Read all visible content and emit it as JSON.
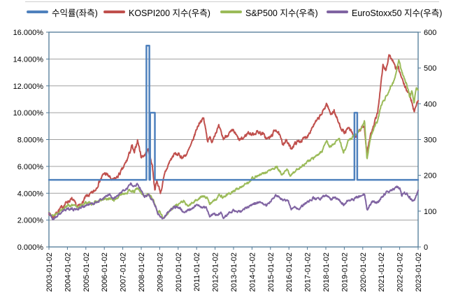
{
  "legend": {
    "items": [
      {
        "label": "수익률(좌측)",
        "color": "#4F81BD"
      },
      {
        "label": "KOSPI200 지수(우측)",
        "color": "#C0504D"
      },
      {
        "label": "S&P500 지수(우측)",
        "color": "#9BBB59"
      },
      {
        "label": "EuroStoxx50 지수(우측)",
        "color": "#8064A2"
      }
    ]
  },
  "chart_data": {
    "type": "line",
    "title": "",
    "grid": true,
    "legend_position": "top",
    "left_axis": {
      "unit": "%",
      "min": 0,
      "max": 16,
      "tick_labels": [
        "16.000%",
        "14.000%",
        "12.000%",
        "10.000%",
        "8.000%",
        "6.000%",
        "4.000%",
        "2.000%",
        "0.000%"
      ]
    },
    "right_axis": {
      "min": 0,
      "max": 600,
      "tick_labels": [
        "600",
        "500",
        "400",
        "300",
        "200",
        "100",
        "0"
      ]
    },
    "x_axis": {
      "min_year": 2003,
      "max_year": 2023,
      "tick_labels": [
        "2003-01-02",
        "2004-01-02",
        "2005-01-02",
        "2006-01-02",
        "2007-01-02",
        "2008-01-02",
        "2009-01-02",
        "2010-01-02",
        "2011-01-02",
        "2012-01-02",
        "2013-01-02",
        "2014-01-02",
        "2015-01-02",
        "2016-01-02",
        "2017-01-02",
        "2018-01-02",
        "2019-01-02",
        "2020-01-02",
        "2021-01-02",
        "2022-01-02",
        "2023-01-02"
      ]
    },
    "series": [
      {
        "name": "수익률(좌측)",
        "axis": "left",
        "color": "#4F81BD",
        "style": "step",
        "jitter": 0,
        "points": [
          [
            2003.0,
            5
          ],
          [
            2008.28,
            5
          ],
          [
            2008.28,
            15
          ],
          [
            2008.44,
            15
          ],
          [
            2008.44,
            5
          ],
          [
            2008.48,
            5
          ],
          [
            2008.48,
            10
          ],
          [
            2008.74,
            10
          ],
          [
            2008.74,
            5
          ],
          [
            2019.55,
            5
          ],
          [
            2019.55,
            10
          ],
          [
            2019.7,
            10
          ],
          [
            2019.7,
            5
          ],
          [
            2023.0,
            5
          ]
        ]
      },
      {
        "name": "KOSPI200 지수(우측)",
        "axis": "right",
        "color": "#C0504D",
        "style": "noisy",
        "jitter": 6.5,
        "points": [
          [
            2003.0,
            96
          ],
          [
            2003.2,
            82
          ],
          [
            2003.5,
            101
          ],
          [
            2003.75,
            113
          ],
          [
            2004.0,
            127
          ],
          [
            2004.25,
            133
          ],
          [
            2004.55,
            111
          ],
          [
            2004.8,
            122
          ],
          [
            2005.0,
            140
          ],
          [
            2005.3,
            148
          ],
          [
            2005.5,
            158
          ],
          [
            2005.75,
            185
          ],
          [
            2006.0,
            206
          ],
          [
            2006.2,
            200
          ],
          [
            2006.45,
            185
          ],
          [
            2006.7,
            195
          ],
          [
            2007.0,
            218
          ],
          [
            2007.25,
            245
          ],
          [
            2007.5,
            283
          ],
          [
            2007.62,
            260
          ],
          [
            2007.8,
            299
          ],
          [
            2008.0,
            252
          ],
          [
            2008.2,
            258
          ],
          [
            2008.38,
            272
          ],
          [
            2008.6,
            228
          ],
          [
            2008.73,
            162
          ],
          [
            2008.85,
            183
          ],
          [
            2009.05,
            152
          ],
          [
            2009.3,
            208
          ],
          [
            2009.55,
            240
          ],
          [
            2009.8,
            260
          ],
          [
            2010.0,
            258
          ],
          [
            2010.25,
            250
          ],
          [
            2010.5,
            262
          ],
          [
            2010.75,
            290
          ],
          [
            2011.0,
            330
          ],
          [
            2011.2,
            352
          ],
          [
            2011.38,
            358
          ],
          [
            2011.6,
            296
          ],
          [
            2011.7,
            312
          ],
          [
            2011.8,
            290
          ],
          [
            2012.0,
            318
          ],
          [
            2012.2,
            335
          ],
          [
            2012.45,
            302
          ],
          [
            2012.7,
            315
          ],
          [
            2013.0,
            324
          ],
          [
            2013.3,
            298
          ],
          [
            2013.5,
            302
          ],
          [
            2013.8,
            320
          ],
          [
            2014.0,
            314
          ],
          [
            2014.3,
            322
          ],
          [
            2014.6,
            315
          ],
          [
            2014.8,
            302
          ],
          [
            2015.0,
            306
          ],
          [
            2015.3,
            330
          ],
          [
            2015.5,
            310
          ],
          [
            2015.65,
            288
          ],
          [
            2015.85,
            298
          ],
          [
            2016.1,
            275
          ],
          [
            2016.4,
            292
          ],
          [
            2016.7,
            298
          ],
          [
            2017.0,
            310
          ],
          [
            2017.3,
            338
          ],
          [
            2017.6,
            358
          ],
          [
            2017.85,
            378
          ],
          [
            2018.04,
            401
          ],
          [
            2018.25,
            372
          ],
          [
            2018.45,
            380
          ],
          [
            2018.7,
            345
          ],
          [
            2019.0,
            318
          ],
          [
            2019.25,
            332
          ],
          [
            2019.55,
            305
          ],
          [
            2019.8,
            322
          ],
          [
            2020.08,
            340
          ],
          [
            2020.22,
            262
          ],
          [
            2020.4,
            310
          ],
          [
            2020.6,
            338
          ],
          [
            2020.8,
            375
          ],
          [
            2020.95,
            440
          ],
          [
            2021.1,
            508
          ],
          [
            2021.25,
            492
          ],
          [
            2021.42,
            537
          ],
          [
            2021.6,
            522
          ],
          [
            2021.75,
            502
          ],
          [
            2021.95,
            498
          ],
          [
            2022.1,
            472
          ],
          [
            2022.3,
            445
          ],
          [
            2022.5,
            430
          ],
          [
            2022.65,
            408
          ],
          [
            2022.78,
            378
          ],
          [
            2022.9,
            402
          ],
          [
            2023.0,
            404
          ]
        ]
      },
      {
        "name": "S&P500 지수(우측)",
        "axis": "right",
        "color": "#9BBB59",
        "style": "noisy",
        "jitter": 4.5,
        "points": [
          [
            2003.0,
            97
          ],
          [
            2003.2,
            87
          ],
          [
            2003.5,
            96
          ],
          [
            2003.75,
            108
          ],
          [
            2004.0,
            117
          ],
          [
            2004.3,
            115
          ],
          [
            2004.6,
            111
          ],
          [
            2005.0,
            124
          ],
          [
            2005.3,
            121
          ],
          [
            2005.6,
            126
          ],
          [
            2006.0,
            133
          ],
          [
            2006.3,
            135
          ],
          [
            2006.55,
            131
          ],
          [
            2007.0,
            150
          ],
          [
            2007.25,
            152
          ],
          [
            2007.45,
            159
          ],
          [
            2007.6,
            152
          ],
          [
            2007.78,
            165
          ],
          [
            2008.0,
            151
          ],
          [
            2008.2,
            142
          ],
          [
            2008.4,
            147
          ],
          [
            2008.65,
            134
          ],
          [
            2008.78,
            112
          ],
          [
            2008.9,
            95
          ],
          [
            2009.0,
            98
          ],
          [
            2009.18,
            80
          ],
          [
            2009.4,
            92
          ],
          [
            2009.7,
            110
          ],
          [
            2010.0,
            120
          ],
          [
            2010.3,
            128
          ],
          [
            2010.5,
            113
          ],
          [
            2010.75,
            122
          ],
          [
            2011.0,
            132
          ],
          [
            2011.3,
            141
          ],
          [
            2011.55,
            138
          ],
          [
            2011.73,
            118
          ],
          [
            2011.85,
            129
          ],
          [
            2012.0,
            132
          ],
          [
            2012.25,
            146
          ],
          [
            2012.42,
            139
          ],
          [
            2012.7,
            147
          ],
          [
            2013.0,
            155
          ],
          [
            2013.4,
            168
          ],
          [
            2013.75,
            178
          ],
          [
            2014.0,
            192
          ],
          [
            2014.4,
            200
          ],
          [
            2014.75,
            208
          ],
          [
            2015.0,
            215
          ],
          [
            2015.35,
            222
          ],
          [
            2015.65,
            200
          ],
          [
            2015.9,
            216
          ],
          [
            2016.1,
            198
          ],
          [
            2016.4,
            216
          ],
          [
            2016.7,
            225
          ],
          [
            2017.0,
            238
          ],
          [
            2017.4,
            250
          ],
          [
            2017.8,
            268
          ],
          [
            2018.04,
            300
          ],
          [
            2018.15,
            280
          ],
          [
            2018.4,
            285
          ],
          [
            2018.72,
            305
          ],
          [
            2018.95,
            262
          ],
          [
            2019.2,
            294
          ],
          [
            2019.4,
            306
          ],
          [
            2019.6,
            314
          ],
          [
            2019.85,
            325
          ],
          [
            2020.1,
            352
          ],
          [
            2020.23,
            242
          ],
          [
            2020.4,
            300
          ],
          [
            2020.6,
            330
          ],
          [
            2020.8,
            352
          ],
          [
            2021.0,
            396
          ],
          [
            2021.25,
            418
          ],
          [
            2021.5,
            448
          ],
          [
            2021.65,
            460
          ],
          [
            2021.8,
            482
          ],
          [
            2021.95,
            525
          ],
          [
            2022.1,
            490
          ],
          [
            2022.25,
            470
          ],
          [
            2022.4,
            452
          ],
          [
            2022.55,
            418
          ],
          [
            2022.65,
            440
          ],
          [
            2022.78,
            402
          ],
          [
            2022.9,
            446
          ],
          [
            2023.0,
            436
          ]
        ]
      },
      {
        "name": "EuroStoxx50 지수(우측)",
        "axis": "right",
        "color": "#8064A2",
        "style": "noisy",
        "jitter": 4.5,
        "points": [
          [
            2003.0,
            96
          ],
          [
            2003.2,
            77
          ],
          [
            2003.5,
            89
          ],
          [
            2003.75,
            99
          ],
          [
            2004.0,
            108
          ],
          [
            2004.3,
            105
          ],
          [
            2004.6,
            107
          ],
          [
            2005.0,
            116
          ],
          [
            2005.4,
            121
          ],
          [
            2005.75,
            130
          ],
          [
            2006.0,
            138
          ],
          [
            2006.3,
            146
          ],
          [
            2006.45,
            132
          ],
          [
            2006.75,
            144
          ],
          [
            2007.0,
            156
          ],
          [
            2007.25,
            164
          ],
          [
            2007.42,
            178
          ],
          [
            2007.6,
            172
          ],
          [
            2007.78,
            176
          ],
          [
            2008.0,
            158
          ],
          [
            2008.18,
            138
          ],
          [
            2008.4,
            146
          ],
          [
            2008.6,
            133
          ],
          [
            2008.78,
            112
          ],
          [
            2008.9,
            95
          ],
          [
            2009.05,
            85
          ],
          [
            2009.18,
            78
          ],
          [
            2009.4,
            95
          ],
          [
            2009.7,
            110
          ],
          [
            2010.0,
            112
          ],
          [
            2010.3,
            96
          ],
          [
            2010.6,
            104
          ],
          [
            2010.8,
            108
          ],
          [
            2011.05,
            118
          ],
          [
            2011.3,
            112
          ],
          [
            2011.55,
            108
          ],
          [
            2011.73,
            82
          ],
          [
            2011.88,
            92
          ],
          [
            2012.1,
            90
          ],
          [
            2012.3,
            95
          ],
          [
            2012.45,
            82
          ],
          [
            2012.7,
            93
          ],
          [
            2013.0,
            102
          ],
          [
            2013.35,
            98
          ],
          [
            2013.7,
            110
          ],
          [
            2014.0,
            118
          ],
          [
            2014.4,
            124
          ],
          [
            2014.75,
            116
          ],
          [
            2015.0,
            128
          ],
          [
            2015.28,
            146
          ],
          [
            2015.5,
            138
          ],
          [
            2015.7,
            128
          ],
          [
            2015.95,
            132
          ],
          [
            2016.12,
            106
          ],
          [
            2016.3,
            112
          ],
          [
            2016.5,
            104
          ],
          [
            2016.75,
            115
          ],
          [
            2017.0,
            126
          ],
          [
            2017.3,
            136
          ],
          [
            2017.6,
            133
          ],
          [
            2017.85,
            140
          ],
          [
            2018.04,
            143
          ],
          [
            2018.25,
            133
          ],
          [
            2018.5,
            138
          ],
          [
            2018.75,
            128
          ],
          [
            2018.97,
            118
          ],
          [
            2019.25,
            130
          ],
          [
            2019.5,
            134
          ],
          [
            2019.75,
            139
          ],
          [
            2020.1,
            148
          ],
          [
            2020.23,
            102
          ],
          [
            2020.4,
            118
          ],
          [
            2020.55,
            127
          ],
          [
            2020.75,
            121
          ],
          [
            2020.9,
            130
          ],
          [
            2021.05,
            140
          ],
          [
            2021.3,
            152
          ],
          [
            2021.5,
            157
          ],
          [
            2021.7,
            162
          ],
          [
            2021.85,
            168
          ],
          [
            2022.0,
            163
          ],
          [
            2022.12,
            143
          ],
          [
            2022.25,
            152
          ],
          [
            2022.4,
            148
          ],
          [
            2022.55,
            138
          ],
          [
            2022.7,
            126
          ],
          [
            2022.8,
            130
          ],
          [
            2022.92,
            148
          ],
          [
            2023.0,
            160
          ]
        ]
      }
    ]
  },
  "colors": {
    "plot_border": "#4F7896",
    "gridline": "#A0A0A0",
    "background": "#FFFFFF",
    "text": "#000000"
  }
}
